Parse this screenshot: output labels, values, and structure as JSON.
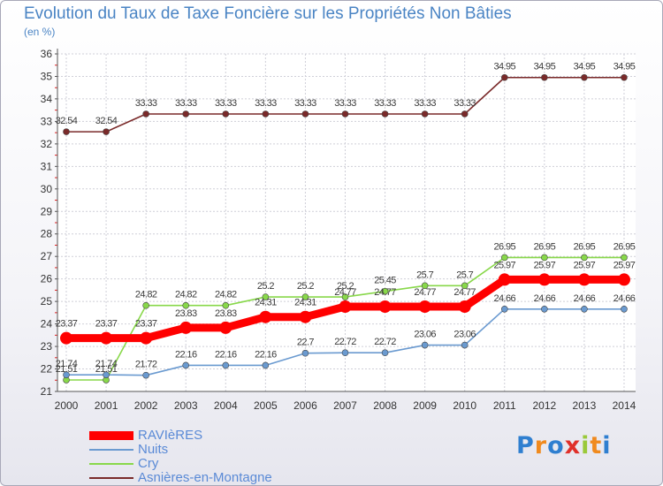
{
  "title": "Evolution du Taux de Taxe Foncière sur les Propriétés Non Bâties",
  "unit": "(en %)",
  "brand": {
    "letters": [
      "P",
      "r",
      "o",
      "x",
      "i",
      "t",
      "i"
    ],
    "colors": [
      "#2f7fd0",
      "#f08a1e",
      "#2f7fd0",
      "#e0302a",
      "#9ac93a",
      "#f08a1e",
      "#2f7fd0"
    ]
  },
  "chart_data": {
    "type": "line",
    "x": [
      "2000",
      "2001",
      "2002",
      "2003",
      "2004",
      "2005",
      "2006",
      "2007",
      "2008",
      "2009",
      "2010",
      "2011",
      "2012",
      "2013",
      "2014"
    ],
    "y_ticks": [
      "21",
      "22",
      "23",
      "24",
      "25",
      "26",
      "27",
      "28",
      "29",
      "30",
      "31",
      "32",
      "33",
      "34",
      "35",
      "36"
    ],
    "ylim": [
      21,
      36
    ],
    "grid": true,
    "legend_position": "bottom-left",
    "series": [
      {
        "name": "Asnières-en-Montagne",
        "color": "#7a2a2a",
        "values": [
          32.54,
          32.54,
          33.33,
          33.33,
          33.33,
          33.33,
          33.33,
          33.33,
          33.33,
          33.33,
          33.33,
          34.95,
          34.95,
          34.95,
          34.95
        ],
        "labels": [
          "32.54",
          "32.54",
          "33.33",
          "33.33",
          "33.33",
          "33.33",
          "33.33",
          "33.33",
          "33.33",
          "33.33",
          "33.33",
          "34.95",
          "34.95",
          "34.95",
          "34.95"
        ]
      },
      {
        "name": "Cry",
        "color": "#88d84a",
        "values": [
          21.51,
          21.51,
          24.82,
          24.82,
          24.82,
          25.2,
          25.2,
          25.2,
          25.45,
          25.7,
          25.7,
          26.95,
          26.95,
          26.95,
          26.95
        ],
        "labels": [
          "21.51",
          "21.51",
          "24.82",
          "24.82",
          "24.82",
          "25.2",
          "25.2",
          "25.2",
          "25.45",
          "25.7",
          "25.7",
          "26.95",
          "26.95",
          "26.95",
          "26.95"
        ]
      },
      {
        "name": "Nuits",
        "color": "#6a9ad0",
        "values": [
          21.74,
          21.74,
          21.72,
          22.16,
          22.16,
          22.16,
          22.7,
          22.72,
          22.72,
          23.06,
          23.06,
          24.66,
          24.66,
          24.66,
          24.66
        ],
        "labels": [
          "21.74",
          "21.74",
          "21.72",
          "22.16",
          "22.16",
          "22.16",
          "22.7",
          "22.72",
          "22.72",
          "23.06",
          "23.06",
          "24.66",
          "24.66",
          "24.66",
          "24.66"
        ]
      },
      {
        "name": "RAVIèRES",
        "color": "#ff0000",
        "values": [
          23.37,
          23.37,
          23.37,
          23.83,
          23.83,
          24.31,
          24.31,
          24.77,
          24.77,
          24.77,
          24.77,
          25.97,
          25.97,
          25.97,
          25.97
        ],
        "labels": [
          "23.37",
          "23.37",
          "23.37",
          "23.83",
          "23.83",
          "24.31",
          "24.31",
          "24.77",
          "24.77",
          "24.77",
          "24.77",
          "25.97",
          "25.97",
          "25.97",
          "25.97"
        ]
      }
    ],
    "legend_order": [
      "RAVIèRES",
      "Nuits",
      "Cry",
      "Asnières-en-Montagne"
    ]
  }
}
